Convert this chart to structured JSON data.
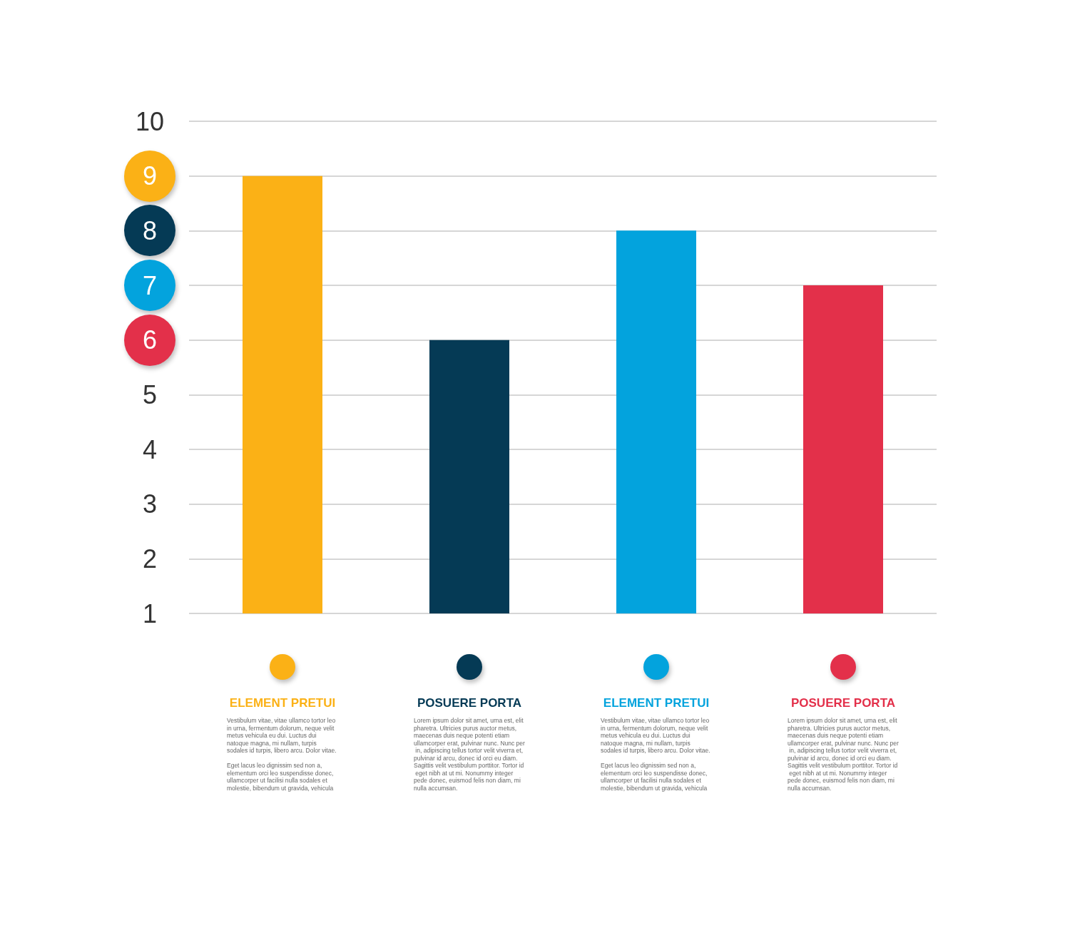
{
  "chart_data": {
    "type": "bar",
    "categories": [
      "ELEMENT PRETUI",
      "POSUERE PORTA",
      "ELEMENT PRETUI",
      "POSUERE PORTA"
    ],
    "values": [
      9,
      6,
      8,
      7
    ],
    "colors": [
      "#fbb116",
      "#053a55",
      "#03a3dd",
      "#e3304a"
    ],
    "ylim": [
      1,
      10
    ],
    "yticks": [
      1,
      2,
      3,
      4,
      5,
      6,
      7,
      8,
      9,
      10
    ],
    "grid": "y",
    "annotations": [
      "Vestibulum vitae, vitae ullamco tortor leo in urna, fermentum dolorum, neque velit metus vehicula eu dui. Luctus dui natoque magna, mi nullam, turpis sodales id turpis, libero arcu. Dolor vitae.\n\nEget lacus leo dignissim sed non a, elementum orci leo suspendisse donec, ullamcorper ut facilisi nulla sodales et molestie, bibendum ut gravida, vehicula",
      "Lorem ipsum dolor sit amet, urna est, elit pharetra. Ultricies purus auctor metus, maecenas duis neque potenti etiam ullamcorper erat, pulvinar nunc. Nunc per in, adipiscing tellus tortor velit viverra et, pulvinar id arcu, donec id orci eu diam. Sagittis velit vestibulum porttitor. Tortor id eget nibh at ut mi. Nonummy integer pede donec, euismod felis non diam, mi nulla accumsan.",
      "Vestibulum vitae, vitae ullamco tortor leo in urna, fermentum dolorum, neque velit metus vehicula eu dui. Luctus dui natoque magna, mi nullam, turpis sodales id turpis, libero arcu. Dolor vitae.\n\nEget lacus leo dignissim sed non a, elementum orci leo suspendisse donec, ullamcorper ut facilisi nulla sodales et molestie, bibendum ut gravida, vehicula",
      "Lorem ipsum dolor sit amet, urna est, elit pharetra. Ultricies purus auctor metus, maecenas duis neque potenti etiam ullamcorper erat, pulvinar nunc. Nunc per in, adipiscing tellus tortor velit viverra et, pulvinar id arcu, donec id orci eu diam. Sagittis velit vestibulum porttitor. Tortor id eget nibh at ut mi. Nonummy integer pede donec, euismod felis non diam, mi nulla accumsan."
    ]
  }
}
